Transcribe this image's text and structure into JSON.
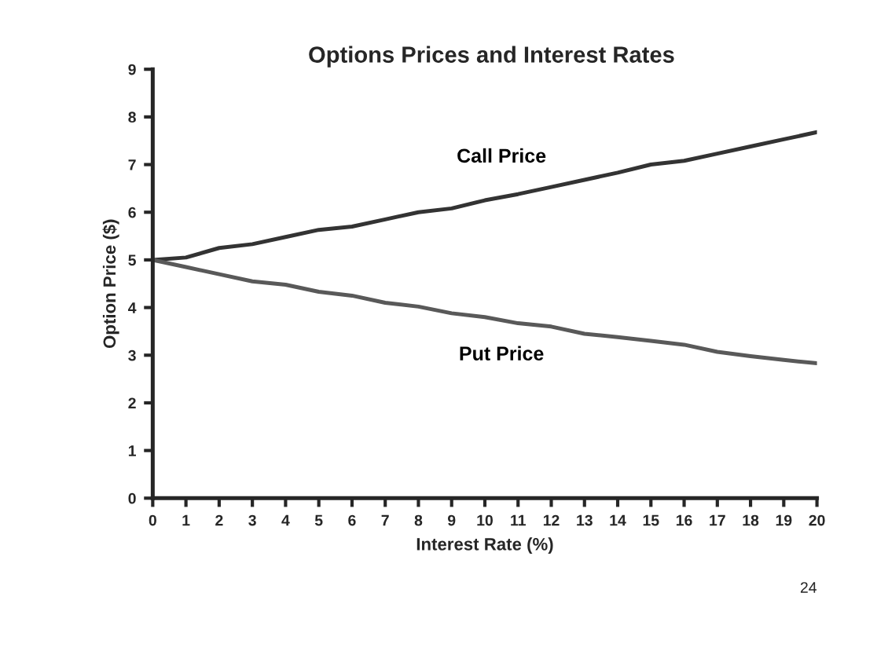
{
  "chart_data": {
    "type": "line",
    "title": "Options Prices and Interest Rates",
    "xlabel": "Interest Rate (%)",
    "ylabel": "Option Price ($)",
    "x": [
      0,
      1,
      2,
      3,
      4,
      5,
      6,
      7,
      8,
      9,
      10,
      11,
      12,
      13,
      14,
      15,
      16,
      17,
      18,
      19,
      20
    ],
    "series": [
      {
        "name": "Call Price",
        "color": "#333333",
        "values": [
          5,
          5.05,
          5.25,
          5.33,
          5.48,
          5.63,
          5.7,
          5.85,
          6.0,
          6.08,
          6.25,
          6.38,
          6.53,
          6.68,
          6.83,
          7.0,
          7.08,
          7.23,
          7.38,
          7.53,
          7.68
        ]
      },
      {
        "name": "Put Price",
        "color": "#595959",
        "values": [
          5,
          4.85,
          4.7,
          4.55,
          4.48,
          4.33,
          4.25,
          4.1,
          4.02,
          3.88,
          3.8,
          3.67,
          3.6,
          3.45,
          3.38,
          3.3,
          3.22,
          3.07,
          2.98,
          2.9,
          2.83
        ]
      }
    ],
    "xlim": [
      0,
      20
    ],
    "xticks": [
      0,
      1,
      2,
      3,
      4,
      5,
      6,
      7,
      8,
      9,
      10,
      11,
      12,
      13,
      14,
      15,
      16,
      17,
      18,
      19,
      20
    ],
    "ylim": [
      0,
      9
    ],
    "yticks": [
      0,
      1,
      2,
      3,
      4,
      5,
      6,
      7,
      8,
      9
    ],
    "grid": false,
    "legend": false,
    "marker": "none",
    "line_style": "solid",
    "annotations": [
      "24"
    ]
  }
}
